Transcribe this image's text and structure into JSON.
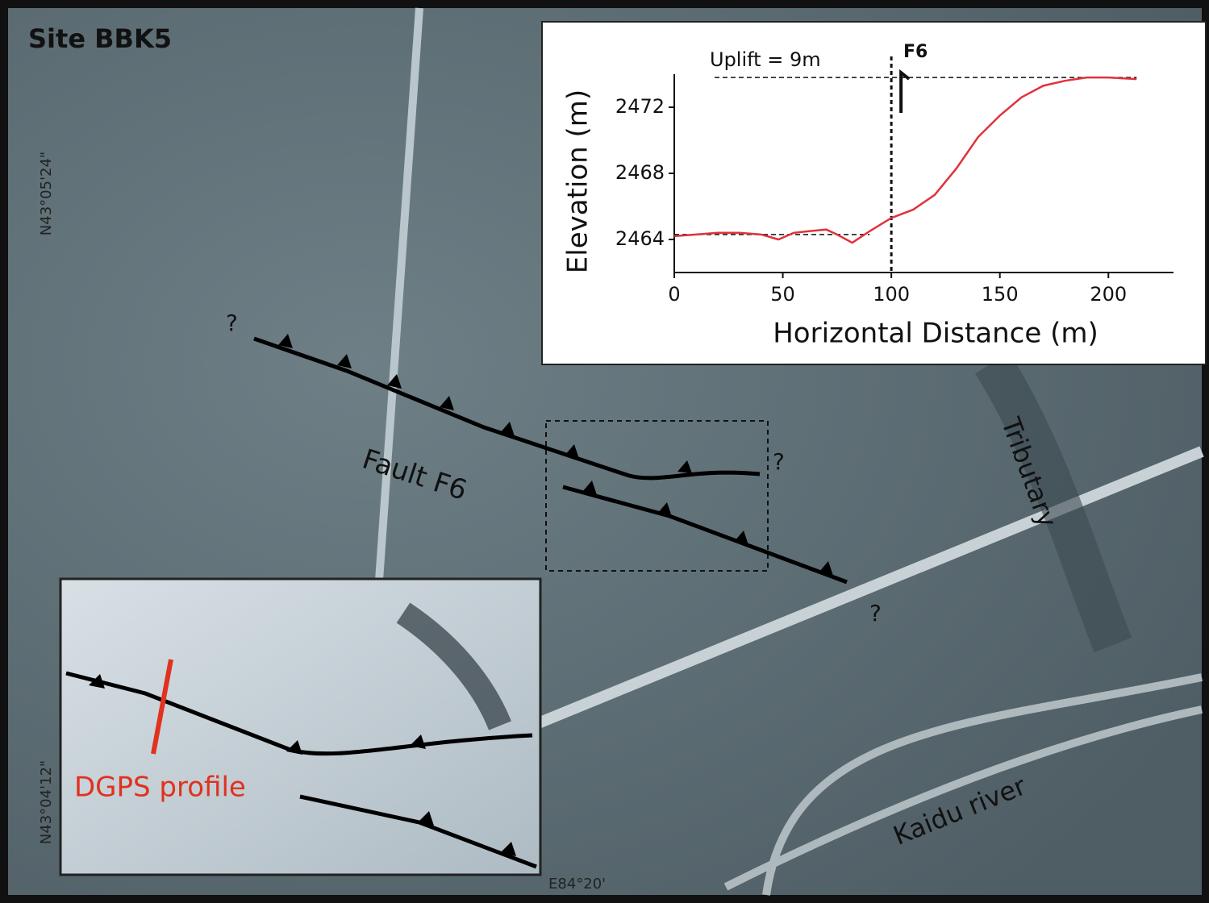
{
  "map": {
    "title": "Site BBK5",
    "labels": {
      "fault": "Fault F6",
      "tributary": "Tributary",
      "river": "Kaidu river"
    },
    "queries": [
      "?",
      "?",
      "?"
    ],
    "coords": [
      "N43°05'24\"",
      "N43°04'12\"",
      "E84°20'"
    ]
  },
  "inset": {
    "label": "DGPS profile"
  },
  "chart_data": {
    "type": "line",
    "xlabel": "Horizontal Distance (m)",
    "ylabel": "Elevation (m)",
    "annotations": {
      "uplift": "Uplift = 9m",
      "fault": "F6"
    },
    "x": [
      0,
      10,
      20,
      30,
      40,
      48,
      55,
      62,
      70,
      75,
      82,
      90,
      100,
      110,
      120,
      130,
      140,
      150,
      160,
      170,
      180,
      190,
      200,
      213
    ],
    "values": [
      2464.2,
      2464.3,
      2464.4,
      2464.4,
      2464.3,
      2464.0,
      2464.4,
      2464.5,
      2464.6,
      2464.3,
      2463.8,
      2464.5,
      2465.3,
      2465.8,
      2466.7,
      2468.3,
      2470.2,
      2471.5,
      2472.6,
      2473.3,
      2473.6,
      2473.8,
      2473.8,
      2473.7
    ],
    "color": "#e0323c",
    "reference": {
      "lower": 2464.3,
      "upper": 2473.8,
      "fault_x": 100
    },
    "xlim": [
      0,
      230
    ],
    "ylim": [
      2462,
      2474
    ],
    "xticks": [
      0,
      50,
      100,
      150,
      200
    ],
    "yticks": [
      2464,
      2468,
      2472
    ]
  }
}
